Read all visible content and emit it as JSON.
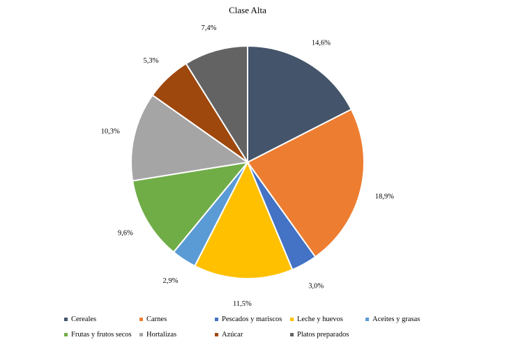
{
  "chart_data": {
    "type": "pie",
    "title": "Clase Alta",
    "categories": [
      "Cereales",
      "Carnes",
      "Pescados y mariscos",
      "Leche y huevos",
      "Aceites y grasas",
      "Frutas y frutos secos",
      "Hortalizas",
      "Azúcar",
      "Platos preparados"
    ],
    "values": [
      14.6,
      18.9,
      3.0,
      11.5,
      2.9,
      9.6,
      10.3,
      5.3,
      7.4
    ],
    "labels": [
      "14,6%",
      "18,9%",
      "3,0%",
      "11,5%",
      "2,9%",
      "9,6%",
      "10,3%",
      "5,3%",
      "7,4%"
    ],
    "colors": [
      "#44546A",
      "#ED7D31",
      "#4472C4",
      "#FFC000",
      "#5B9BD5",
      "#70AD47",
      "#A5A5A5",
      "#9E480E",
      "#636363"
    ],
    "legend_position": "bottom"
  }
}
